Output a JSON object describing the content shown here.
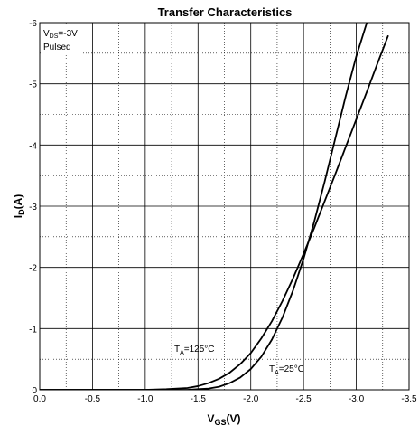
{
  "chart_data": {
    "type": "line",
    "title": "Transfer Characteristics",
    "xlabel": {
      "main": "V",
      "sub": "GS",
      "unit": "(V)"
    },
    "ylabel": {
      "main": "I",
      "sub": "D",
      "unit": "(A)"
    },
    "xlim": [
      0.0,
      -3.5
    ],
    "ylim": [
      0,
      -6
    ],
    "x_ticks": [
      "0.0",
      "-0.5",
      "-1.0",
      "-1.5",
      "-2.0",
      "-2.5",
      "-3.0",
      "-3.5"
    ],
    "y_ticks": [
      "0",
      "-1",
      "-2",
      "-3",
      "-4",
      "-5",
      "-6"
    ],
    "grid": true,
    "condition": {
      "line1_main": "V",
      "line1_sub": "DS",
      "line1_rest": "=-3V",
      "line2": "Pulsed"
    },
    "series": [
      {
        "label_main": "T",
        "label_sub": "A",
        "label_rest": "=125°C",
        "x": [
          0.0,
          -0.5,
          -1.0,
          -1.2,
          -1.4,
          -1.5,
          -1.6,
          -1.7,
          -1.8,
          -1.9,
          -2.0,
          -2.1,
          -2.2,
          -2.3,
          -2.4,
          -2.5,
          -2.6,
          -2.7,
          -2.8,
          -2.9,
          -3.0,
          -3.1,
          -3.2,
          -3.3
        ],
        "y": [
          0.0,
          0.0,
          0.0,
          -0.01,
          -0.03,
          -0.06,
          -0.11,
          -0.18,
          -0.28,
          -0.42,
          -0.6,
          -0.84,
          -1.12,
          -1.45,
          -1.82,
          -2.22,
          -2.64,
          -3.08,
          -3.52,
          -3.97,
          -4.42,
          -4.87,
          -5.33,
          -5.78
        ]
      },
      {
        "label_main": "T",
        "label_sub": "A",
        "label_rest": "=25°C",
        "x": [
          0.0,
          -0.5,
          -1.0,
          -1.4,
          -1.5,
          -1.6,
          -1.7,
          -1.8,
          -1.9,
          -2.0,
          -2.1,
          -2.2,
          -2.3,
          -2.4,
          -2.5,
          -2.6,
          -2.7,
          -2.8,
          -2.9,
          -3.0,
          -3.1,
          -3.2
        ],
        "y": [
          0.0,
          0.0,
          0.0,
          0.0,
          -0.01,
          -0.02,
          -0.05,
          -0.11,
          -0.2,
          -0.34,
          -0.54,
          -0.82,
          -1.18,
          -1.62,
          -2.14,
          -2.74,
          -3.4,
          -4.1,
          -4.8,
          -5.45,
          -6.0,
          -6.4
        ]
      }
    ]
  }
}
